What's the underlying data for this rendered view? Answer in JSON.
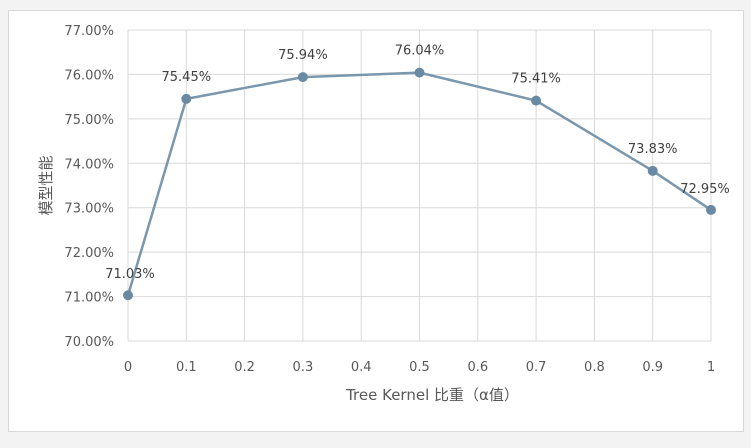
{
  "chart_data": {
    "type": "line",
    "title": "",
    "xlabel": "Tree Kernel 比重（α值）",
    "ylabel": "模型性能",
    "x": [
      0,
      0.1,
      0.3,
      0.5,
      0.7,
      0.9,
      1
    ],
    "x_ticks": [
      "0",
      "0.1",
      "0.2",
      "0.3",
      "0.4",
      "0.5",
      "0.6",
      "0.7",
      "0.8",
      "0.9",
      "1"
    ],
    "x_tick_values": [
      0,
      0.1,
      0.2,
      0.3,
      0.4,
      0.5,
      0.6,
      0.7,
      0.8,
      0.9,
      1
    ],
    "xlim": [
      0,
      1
    ],
    "ylim": [
      70,
      77
    ],
    "y_ticks": [
      "70.00%",
      "71.00%",
      "72.00%",
      "73.00%",
      "74.00%",
      "75.00%",
      "76.00%",
      "77.00%"
    ],
    "y_tick_values": [
      70,
      71,
      72,
      73,
      74,
      75,
      76,
      77
    ],
    "series": [
      {
        "values": [
          71.03,
          75.45,
          75.94,
          76.04,
          75.41,
          73.83,
          72.95
        ],
        "labels": [
          "71.03%",
          "75.45%",
          "75.94%",
          "76.04%",
          "75.41%",
          "73.83%",
          "72.95%"
        ]
      }
    ],
    "grid": true,
    "colors": {
      "line": "#7a97ad",
      "marker": "#6a8aa3",
      "grid": "#d9d9d9"
    }
  }
}
